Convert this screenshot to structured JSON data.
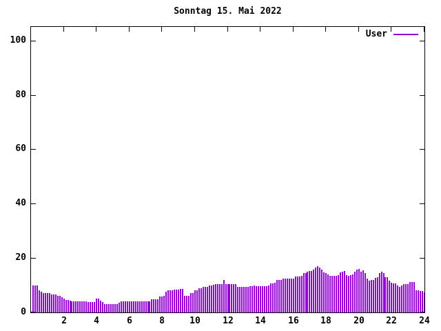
{
  "chart_data": {
    "type": "bar",
    "style": "impulses",
    "title": "Sonntag 15. Mai 2022",
    "xlabel": "",
    "ylabel": "",
    "xlim": [
      0,
      24
    ],
    "ylim": [
      0,
      105
    ],
    "grid": false,
    "x_ticks": [
      2,
      4,
      6,
      8,
      10,
      12,
      14,
      16,
      18,
      20,
      22,
      24
    ],
    "y_ticks": [
      0,
      20,
      40,
      60,
      80,
      100
    ],
    "legend": {
      "position": "top-right-inside",
      "entries": [
        {
          "label": "User",
          "color": "#9400D3"
        }
      ]
    },
    "series": [
      {
        "name": "User",
        "color": "#9400D3",
        "x_start_hour": 0.125,
        "x_step_hours": 0.125,
        "values": [
          10,
          10,
          10,
          8,
          7.5,
          7,
          7,
          7,
          7,
          6.5,
          6.5,
          6.5,
          6,
          6,
          5.5,
          5,
          4.5,
          4.5,
          4.2,
          4,
          4,
          4,
          4,
          4,
          4,
          4,
          4,
          3.8,
          3.8,
          3.8,
          3.8,
          5,
          5,
          4.2,
          3.8,
          3,
          3,
          3,
          3,
          3,
          3,
          3,
          3.5,
          4,
          4,
          4,
          4,
          4,
          4,
          4,
          4,
          4,
          4,
          4,
          4,
          4,
          4,
          4,
          4.9,
          4.9,
          4.9,
          4.9,
          5.9,
          5.9,
          6,
          7.6,
          8,
          8,
          8,
          8.4,
          8.4,
          8.4,
          8.5,
          8.5,
          6,
          6,
          6,
          7,
          7,
          8,
          8,
          9,
          9,
          9.5,
          9.5,
          9.5,
          10,
          10,
          10.2,
          10.3,
          10.3,
          10.3,
          10.3,
          11.8,
          10.5,
          10.5,
          10.5,
          10.5,
          10.5,
          10.5,
          9.3,
          9.3,
          9.3,
          9.3,
          9.3,
          9.5,
          9.7,
          9.7,
          10,
          9.7,
          9.7,
          9.7,
          9.7,
          9.7,
          9.7,
          10,
          10.7,
          10.7,
          11,
          11.8,
          11.8,
          11.8,
          12.4,
          12.4,
          12.4,
          12.4,
          12.4,
          12.4,
          13.1,
          13.1,
          13.1,
          13.5,
          14.4,
          14.4,
          14.9,
          15.2,
          15.2,
          15.6,
          16.5,
          17,
          16.5,
          15.6,
          14.8,
          14.4,
          14,
          13.5,
          13.5,
          13.5,
          13.5,
          13.8,
          14.7,
          15,
          15.2,
          13.8,
          13.5,
          13.8,
          14,
          15,
          15.8,
          16,
          15,
          15.4,
          14.5,
          12.4,
          11.6,
          12,
          12,
          12.8,
          13,
          14.5,
          15,
          14.5,
          13,
          13,
          11.6,
          11,
          10.7,
          10.7,
          9.9,
          9.4,
          9.9,
          10.4,
          10.4,
          10.4,
          11.2,
          11.2,
          11.2,
          8.2,
          8,
          7.8,
          7.8,
          7.3
        ]
      }
    ]
  },
  "colors": {
    "background": "#ffffff",
    "axis": "#000000",
    "text": "#000000",
    "series_user": "#9400D3"
  }
}
